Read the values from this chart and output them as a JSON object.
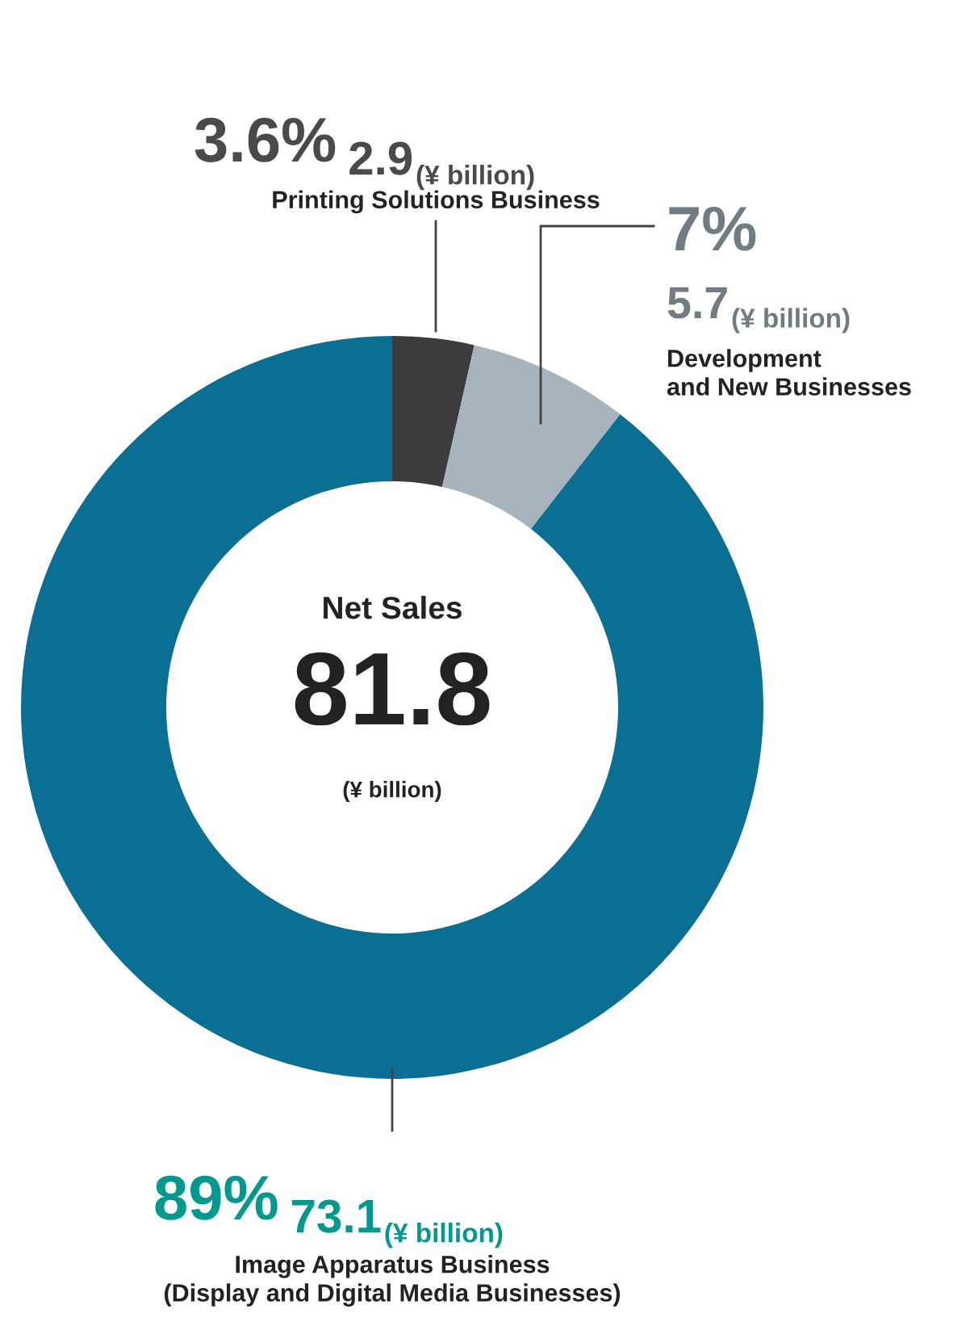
{
  "chart_data": {
    "type": "donut",
    "title": "Net Sales",
    "totals": [
      "81.8"
    ],
    "categories": [
      "Printing Solutions Business",
      "Development\nand New Businesses",
      "Image Apparatus Business\n(Display and Digital Media Businesses)"
    ],
    "values": [
      2.9,
      5.7,
      73.1
    ],
    "value_labels": [
      "2.9",
      "5.7",
      "73.1"
    ],
    "colors": [
      "#3c3c3e",
      "#a7b4bd",
      "#0b6f94"
    ],
    "annotations": [
      "3.6%",
      "7%",
      "89%",
      "(¥ billion)"
    ],
    "legend": false
  }
}
